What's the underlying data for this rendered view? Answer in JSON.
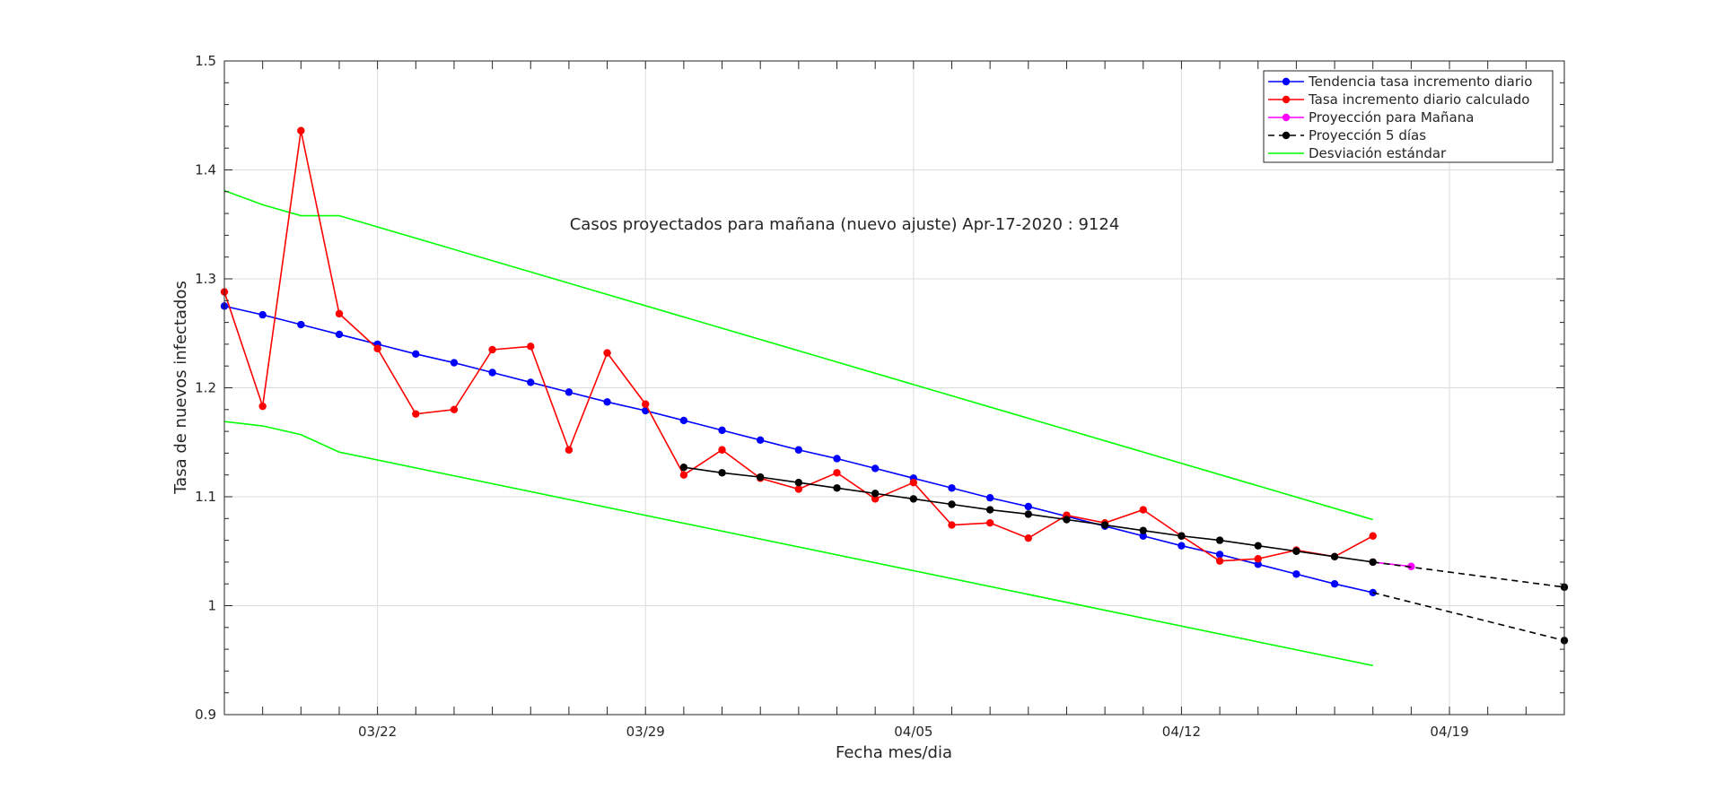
{
  "chart_data": {
    "type": "line",
    "title": "",
    "annotation": "Casos proyectados para mañana (nuevo ajuste) Apr-17-2020 : 9124",
    "xlabel": "Fecha mes/dia",
    "ylabel": "Tasa de nuevos infectados",
    "x_start": "2020-03-18",
    "xlim": [
      "2020-03-18",
      "2020-04-22"
    ],
    "ylim": [
      0.9,
      1.5
    ],
    "xticks": [
      {
        "date": "2020-03-22",
        "label": "03/22"
      },
      {
        "date": "2020-03-29",
        "label": "03/29"
      },
      {
        "date": "2020-04-05",
        "label": "04/05"
      },
      {
        "date": "2020-04-12",
        "label": "04/12"
      },
      {
        "date": "2020-04-19",
        "label": "04/19"
      }
    ],
    "yticks": [
      {
        "value": 0.9,
        "label": "0.9"
      },
      {
        "value": 1.0,
        "label": "1"
      },
      {
        "value": 1.1,
        "label": "1.1"
      },
      {
        "value": 1.2,
        "label": "1.2"
      },
      {
        "value": 1.3,
        "label": "1.3"
      },
      {
        "value": 1.4,
        "label": "1.4"
      },
      {
        "value": 1.5,
        "label": "1.5"
      }
    ],
    "grid": true,
    "legend_position": "top-right",
    "series": [
      {
        "name": "Tendencia tasa incremento diario",
        "color": "#0000ff",
        "line": "solid",
        "marker": true,
        "x": [
          "2020-03-18",
          "2020-03-19",
          "2020-03-20",
          "2020-03-21",
          "2020-03-22",
          "2020-03-23",
          "2020-03-24",
          "2020-03-25",
          "2020-03-26",
          "2020-03-27",
          "2020-03-28",
          "2020-03-29",
          "2020-03-30",
          "2020-03-31",
          "2020-04-01",
          "2020-04-02",
          "2020-04-03",
          "2020-04-04",
          "2020-04-05",
          "2020-04-06",
          "2020-04-07",
          "2020-04-08",
          "2020-04-09",
          "2020-04-10",
          "2020-04-11",
          "2020-04-12",
          "2020-04-13",
          "2020-04-14",
          "2020-04-15",
          "2020-04-16",
          "2020-04-17"
        ],
        "y": [
          1.275,
          1.267,
          1.258,
          1.249,
          1.24,
          1.231,
          1.223,
          1.214,
          1.205,
          1.196,
          1.187,
          1.179,
          1.17,
          1.161,
          1.152,
          1.143,
          1.135,
          1.126,
          1.117,
          1.108,
          1.099,
          1.091,
          1.082,
          1.073,
          1.064,
          1.055,
          1.047,
          1.038,
          1.029,
          1.02,
          1.012
        ]
      },
      {
        "name": "Tasa incremento diario calculado",
        "color": "#ff0000",
        "line": "solid",
        "marker": true,
        "x": [
          "2020-03-18",
          "2020-03-19",
          "2020-03-20",
          "2020-03-21",
          "2020-03-22",
          "2020-03-23",
          "2020-03-24",
          "2020-03-25",
          "2020-03-26",
          "2020-03-27",
          "2020-03-28",
          "2020-03-29",
          "2020-03-30",
          "2020-03-31",
          "2020-04-01",
          "2020-04-02",
          "2020-04-03",
          "2020-04-04",
          "2020-04-05",
          "2020-04-06",
          "2020-04-07",
          "2020-04-08",
          "2020-04-09",
          "2020-04-10",
          "2020-04-11",
          "2020-04-12",
          "2020-04-13",
          "2020-04-14",
          "2020-04-15",
          "2020-04-16",
          "2020-04-17"
        ],
        "y": [
          1.288,
          1.183,
          1.436,
          1.268,
          1.236,
          1.176,
          1.18,
          1.235,
          1.238,
          1.143,
          1.232,
          1.185,
          1.12,
          1.143,
          1.117,
          1.107,
          1.122,
          1.098,
          1.113,
          1.074,
          1.076,
          1.062,
          1.083,
          1.076,
          1.088,
          1.064,
          1.041,
          1.043,
          1.051,
          1.045,
          1.064
        ]
      },
      {
        "name": "Proyección para Mañana",
        "color": "#ff00ff",
        "line": "solid",
        "marker": true,
        "x": [
          "2020-04-17",
          "2020-04-18"
        ],
        "y": [
          1.04,
          1.036
        ]
      },
      {
        "name": "Proyección 5 días",
        "color": "#000000",
        "line": "dashed",
        "marker": true,
        "x": [
          "2020-03-30",
          "2020-03-31",
          "2020-04-01",
          "2020-04-02",
          "2020-04-03",
          "2020-04-04",
          "2020-04-05",
          "2020-04-06",
          "2020-04-07",
          "2020-04-08",
          "2020-04-09",
          "2020-04-10",
          "2020-04-11",
          "2020-04-12",
          "2020-04-13",
          "2020-04-14",
          "2020-04-15",
          "2020-04-16",
          "2020-04-17"
        ],
        "y": [
          1.127,
          1.122,
          1.118,
          1.113,
          1.108,
          1.103,
          1.098,
          1.093,
          1.088,
          1.084,
          1.079,
          1.074,
          1.069,
          1.064,
          1.06,
          1.055,
          1.05,
          1.045,
          1.04
        ],
        "projections": [
          {
            "x": [
              "2020-04-17",
              "2020-04-22"
            ],
            "y": [
              1.04,
              1.017
            ]
          },
          {
            "x": [
              "2020-04-17",
              "2020-04-22"
            ],
            "y": [
              1.012,
              0.968
            ]
          }
        ]
      },
      {
        "name": "Desviación estándar",
        "color": "#00ff00",
        "line": "solid",
        "marker": false,
        "bands": [
          {
            "x": [
              "2020-03-18",
              "2020-03-19",
              "2020-03-20",
              "2020-03-21",
              "2020-04-17"
            ],
            "y": [
              1.381,
              1.368,
              1.358,
              1.358,
              1.079
            ]
          },
          {
            "x": [
              "2020-03-18",
              "2020-03-19",
              "2020-03-20",
              "2020-03-21",
              "2020-04-17"
            ],
            "y": [
              1.169,
              1.165,
              1.157,
              1.141,
              0.945
            ]
          }
        ]
      }
    ]
  }
}
